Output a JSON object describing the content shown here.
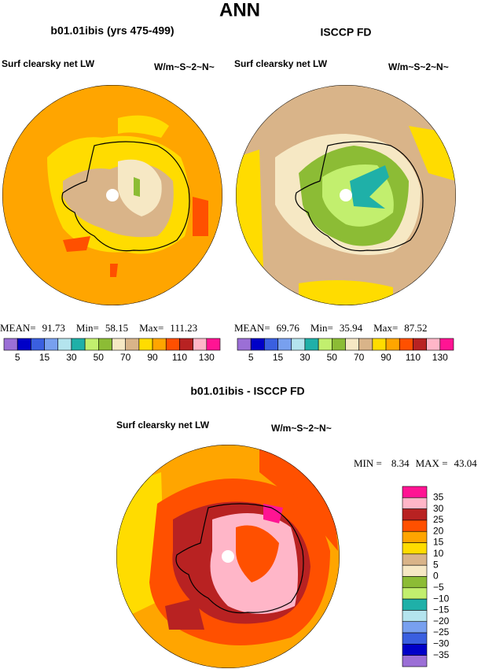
{
  "title": "ANN",
  "panels": [
    {
      "title": "b01.01ibis (yrs 475-499)",
      "left_label": "Surf clearsky net LW",
      "units": "W/m~S~2~N~",
      "stats": [
        {
          "label": "MEAN=",
          "value": "91.73"
        },
        {
          "label": "Min=",
          "value": "58.15"
        },
        {
          "label": "Max=",
          "value": "111.23"
        }
      ]
    },
    {
      "title": "ISCCP FD",
      "left_label": "Surf clearsky net LW",
      "units": "W/m~S~2~N~",
      "stats": [
        {
          "label": "MEAN=",
          "value": "69.76"
        },
        {
          "label": "Min=",
          "value": "35.94"
        },
        {
          "label": "Max=",
          "value": "87.52"
        }
      ]
    }
  ],
  "top_colorbar": {
    "colors": [
      "#9b6fd6",
      "#0000c8",
      "#3a5fe0",
      "#78a0ef",
      "#b4e4ee",
      "#1fb0a8",
      "#c2ef6e",
      "#8cbc35",
      "#f6e8c4",
      "#d9b489",
      "#ffdc00",
      "#ffa500",
      "#ff5000",
      "#b82222",
      "#ffb6c8",
      "#ff1493"
    ],
    "labels": [
      "5",
      "15",
      "30",
      "50",
      "70",
      "90",
      "110",
      "130"
    ]
  },
  "difference": {
    "title": "b01.01ibis - ISCCP FD",
    "left_label": "Surf clearsky net LW",
    "units": "W/m~S~2~N~",
    "stats": [
      {
        "label": "MIN =",
        "value": "8.34"
      },
      {
        "label": "MAX =",
        "value": "43.04"
      }
    ],
    "colorbar": {
      "colors": [
        "#ff1493",
        "#ffb6c8",
        "#b82222",
        "#ff5000",
        "#ffa500",
        "#ffdc00",
        "#d9b489",
        "#f6e8c4",
        "#8cbc35",
        "#c2ef6e",
        "#1fb0a8",
        "#b4e4ee",
        "#78a0ef",
        "#3a5fe0",
        "#0000c8",
        "#9b6fd6"
      ],
      "labels": [
        "35",
        "30",
        "25",
        "20",
        "15",
        "10",
        "5",
        "0",
        "−5",
        "−10",
        "−15",
        "−20",
        "−25",
        "−30",
        "−35"
      ]
    }
  }
}
